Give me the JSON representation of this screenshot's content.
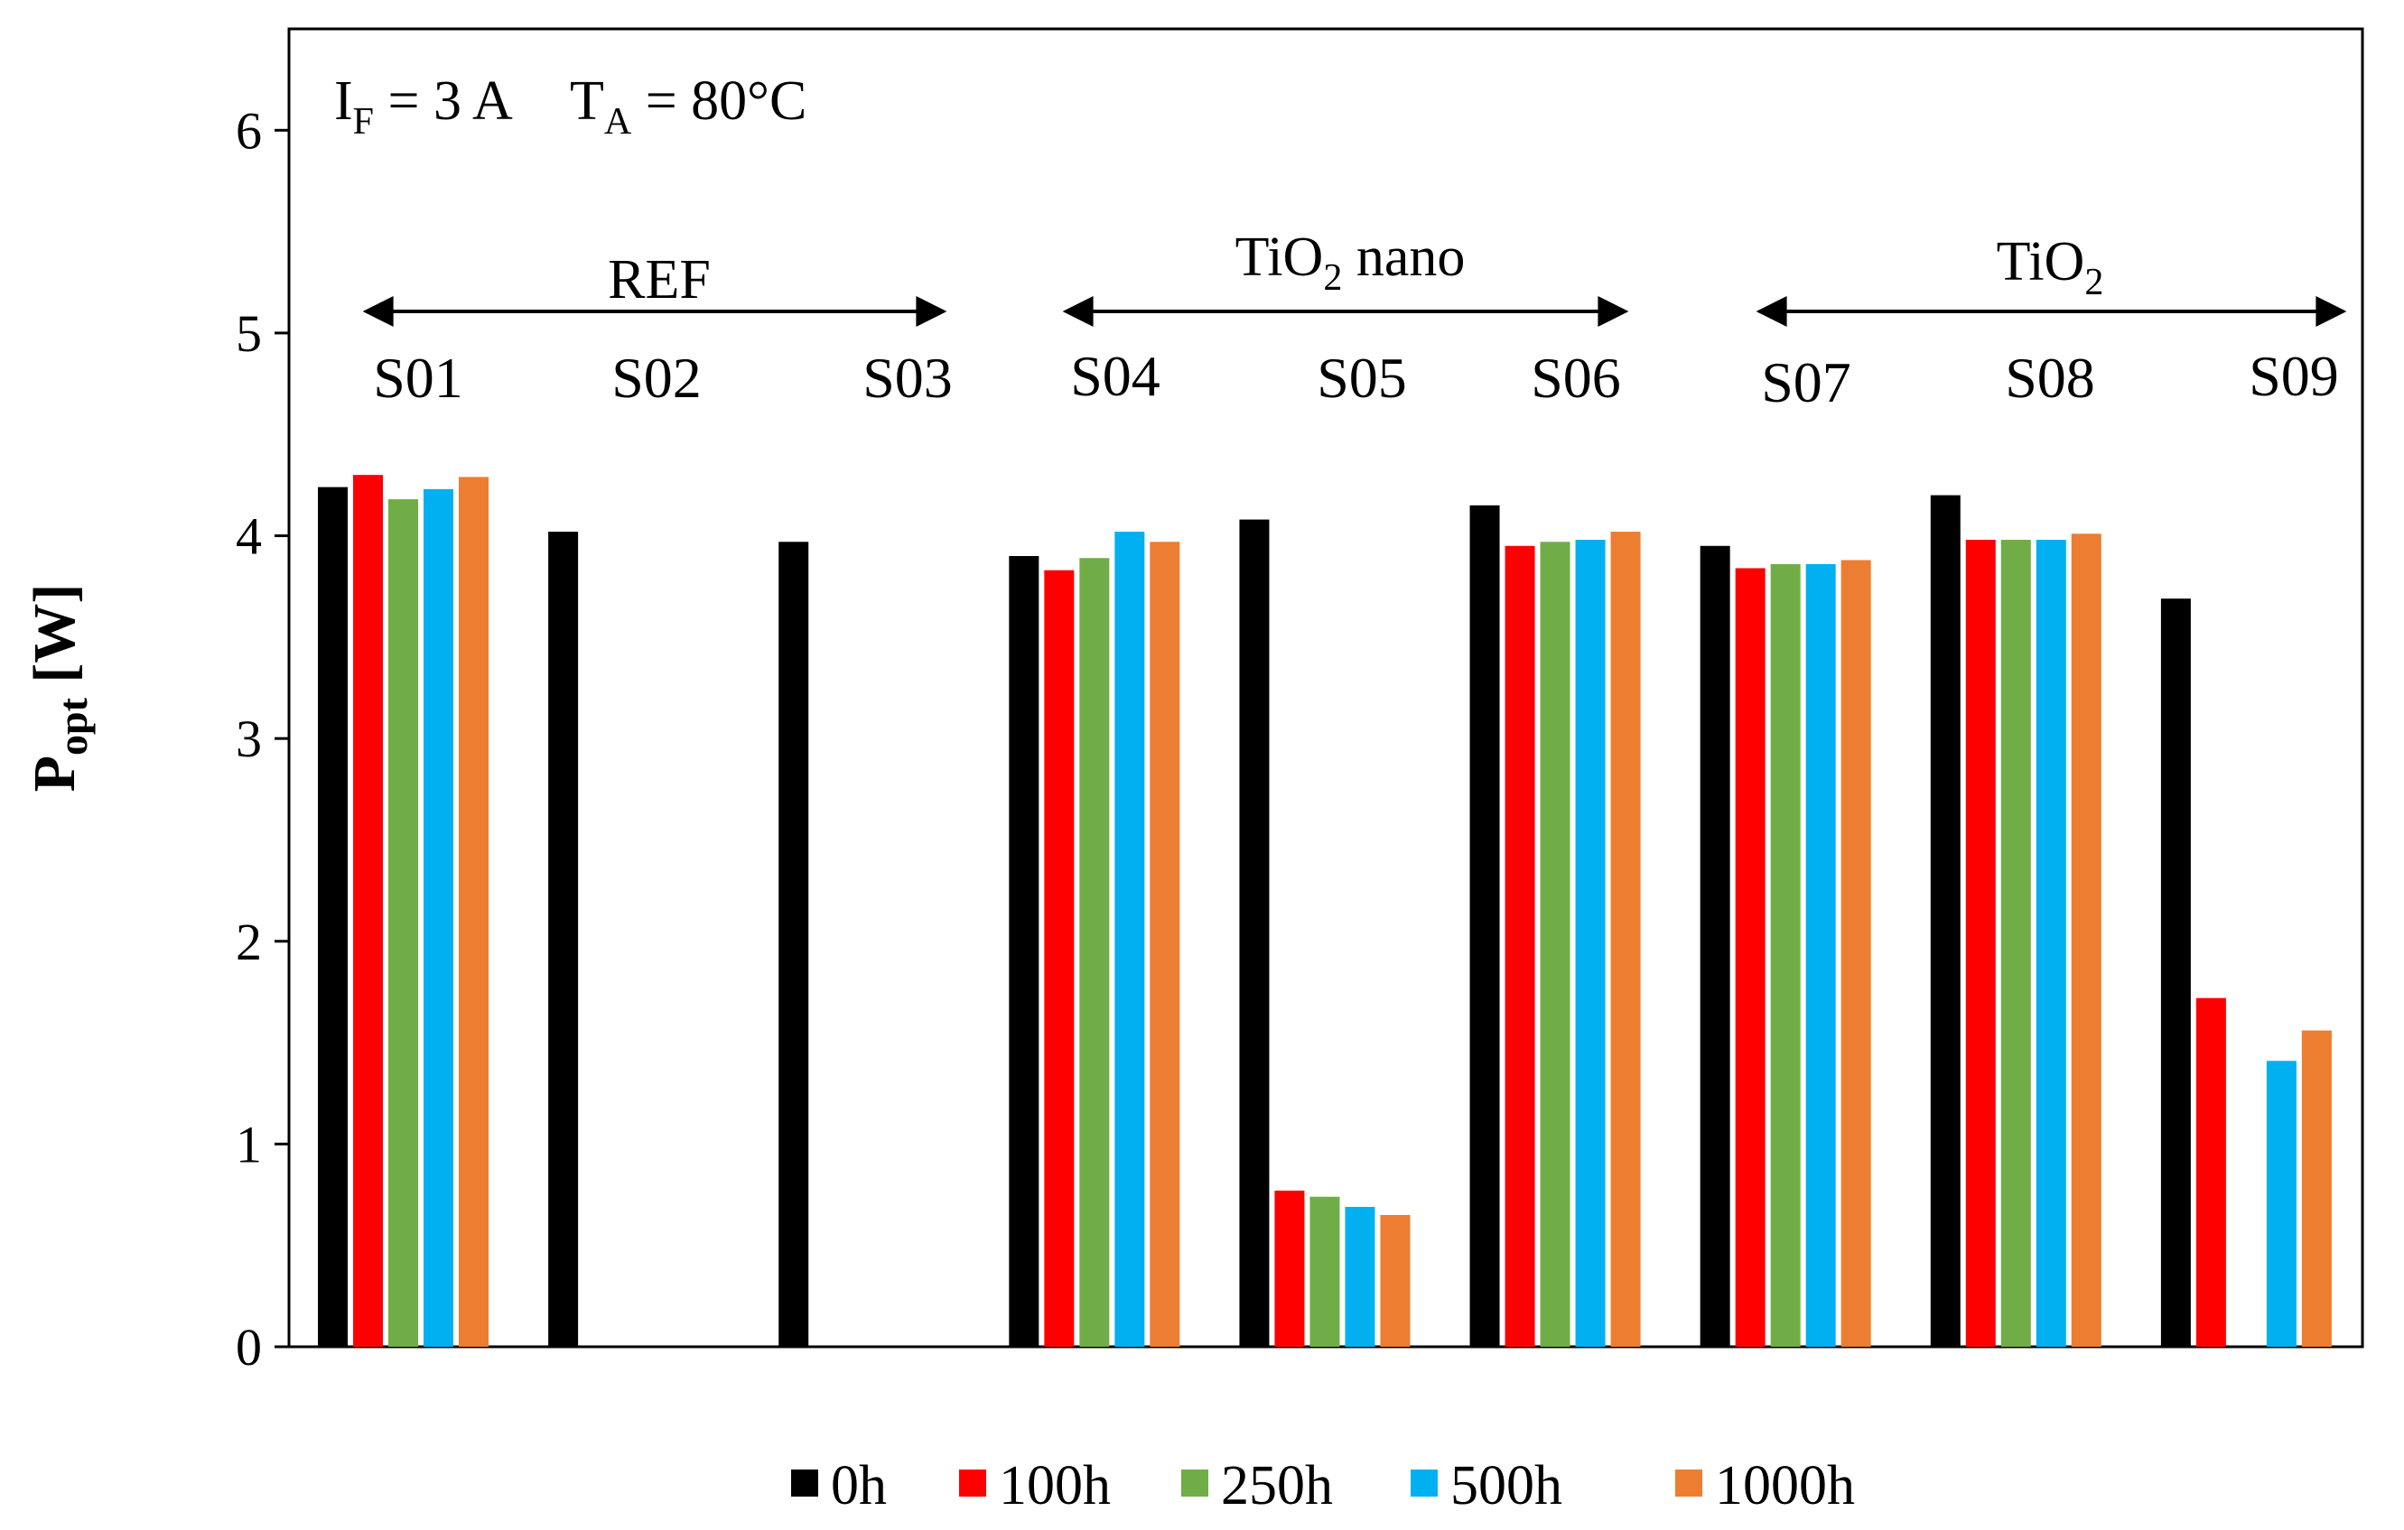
{
  "chart_data": {
    "type": "bar",
    "categories": [
      "S01",
      "S02",
      "S03",
      "S04",
      "S05",
      "S06",
      "S07",
      "S08",
      "S09"
    ],
    "series": [
      {
        "name": "0h",
        "color": "#000000",
        "values": [
          4.24,
          4.02,
          3.97,
          3.9,
          4.08,
          4.15,
          3.95,
          4.2,
          3.69
        ]
      },
      {
        "name": "100h",
        "color": "#ff0000",
        "values": [
          4.3,
          null,
          null,
          3.83,
          0.77,
          3.95,
          3.84,
          3.98,
          1.72
        ]
      },
      {
        "name": "250h",
        "color": "#70ad47",
        "values": [
          4.18,
          null,
          null,
          3.89,
          0.74,
          3.97,
          3.86,
          3.98,
          null
        ]
      },
      {
        "name": "500h",
        "color": "#00b0f0",
        "values": [
          4.23,
          null,
          null,
          4.02,
          0.69,
          3.98,
          3.86,
          3.98,
          1.41
        ]
      },
      {
        "name": "1000h",
        "color": "#ed7d31",
        "values": [
          4.29,
          null,
          null,
          3.97,
          0.65,
          4.02,
          3.88,
          4.01,
          1.56
        ]
      }
    ],
    "ylim": [
      0,
      6.5
    ],
    "yticks": [
      "0",
      "1",
      "2",
      "3",
      "4",
      "5",
      "6"
    ],
    "ylabel": {
      "main": "P",
      "sub": "opt",
      "unit": " [W]"
    },
    "groups": [
      {
        "label": "REF",
        "sub": ""
      },
      {
        "label": "TiO",
        "sub": "2",
        "suffix": " nano"
      },
      {
        "label": "TiO",
        "sub": "2",
        "suffix": ""
      }
    ],
    "conditions": {
      "current": {
        "symbol": "I",
        "sub": "F",
        "value": " = 3 A"
      },
      "temperature": {
        "symbol": "T",
        "sub": "A",
        "value": " = 80°C"
      }
    },
    "legend_position": "bottom",
    "grid": false
  }
}
